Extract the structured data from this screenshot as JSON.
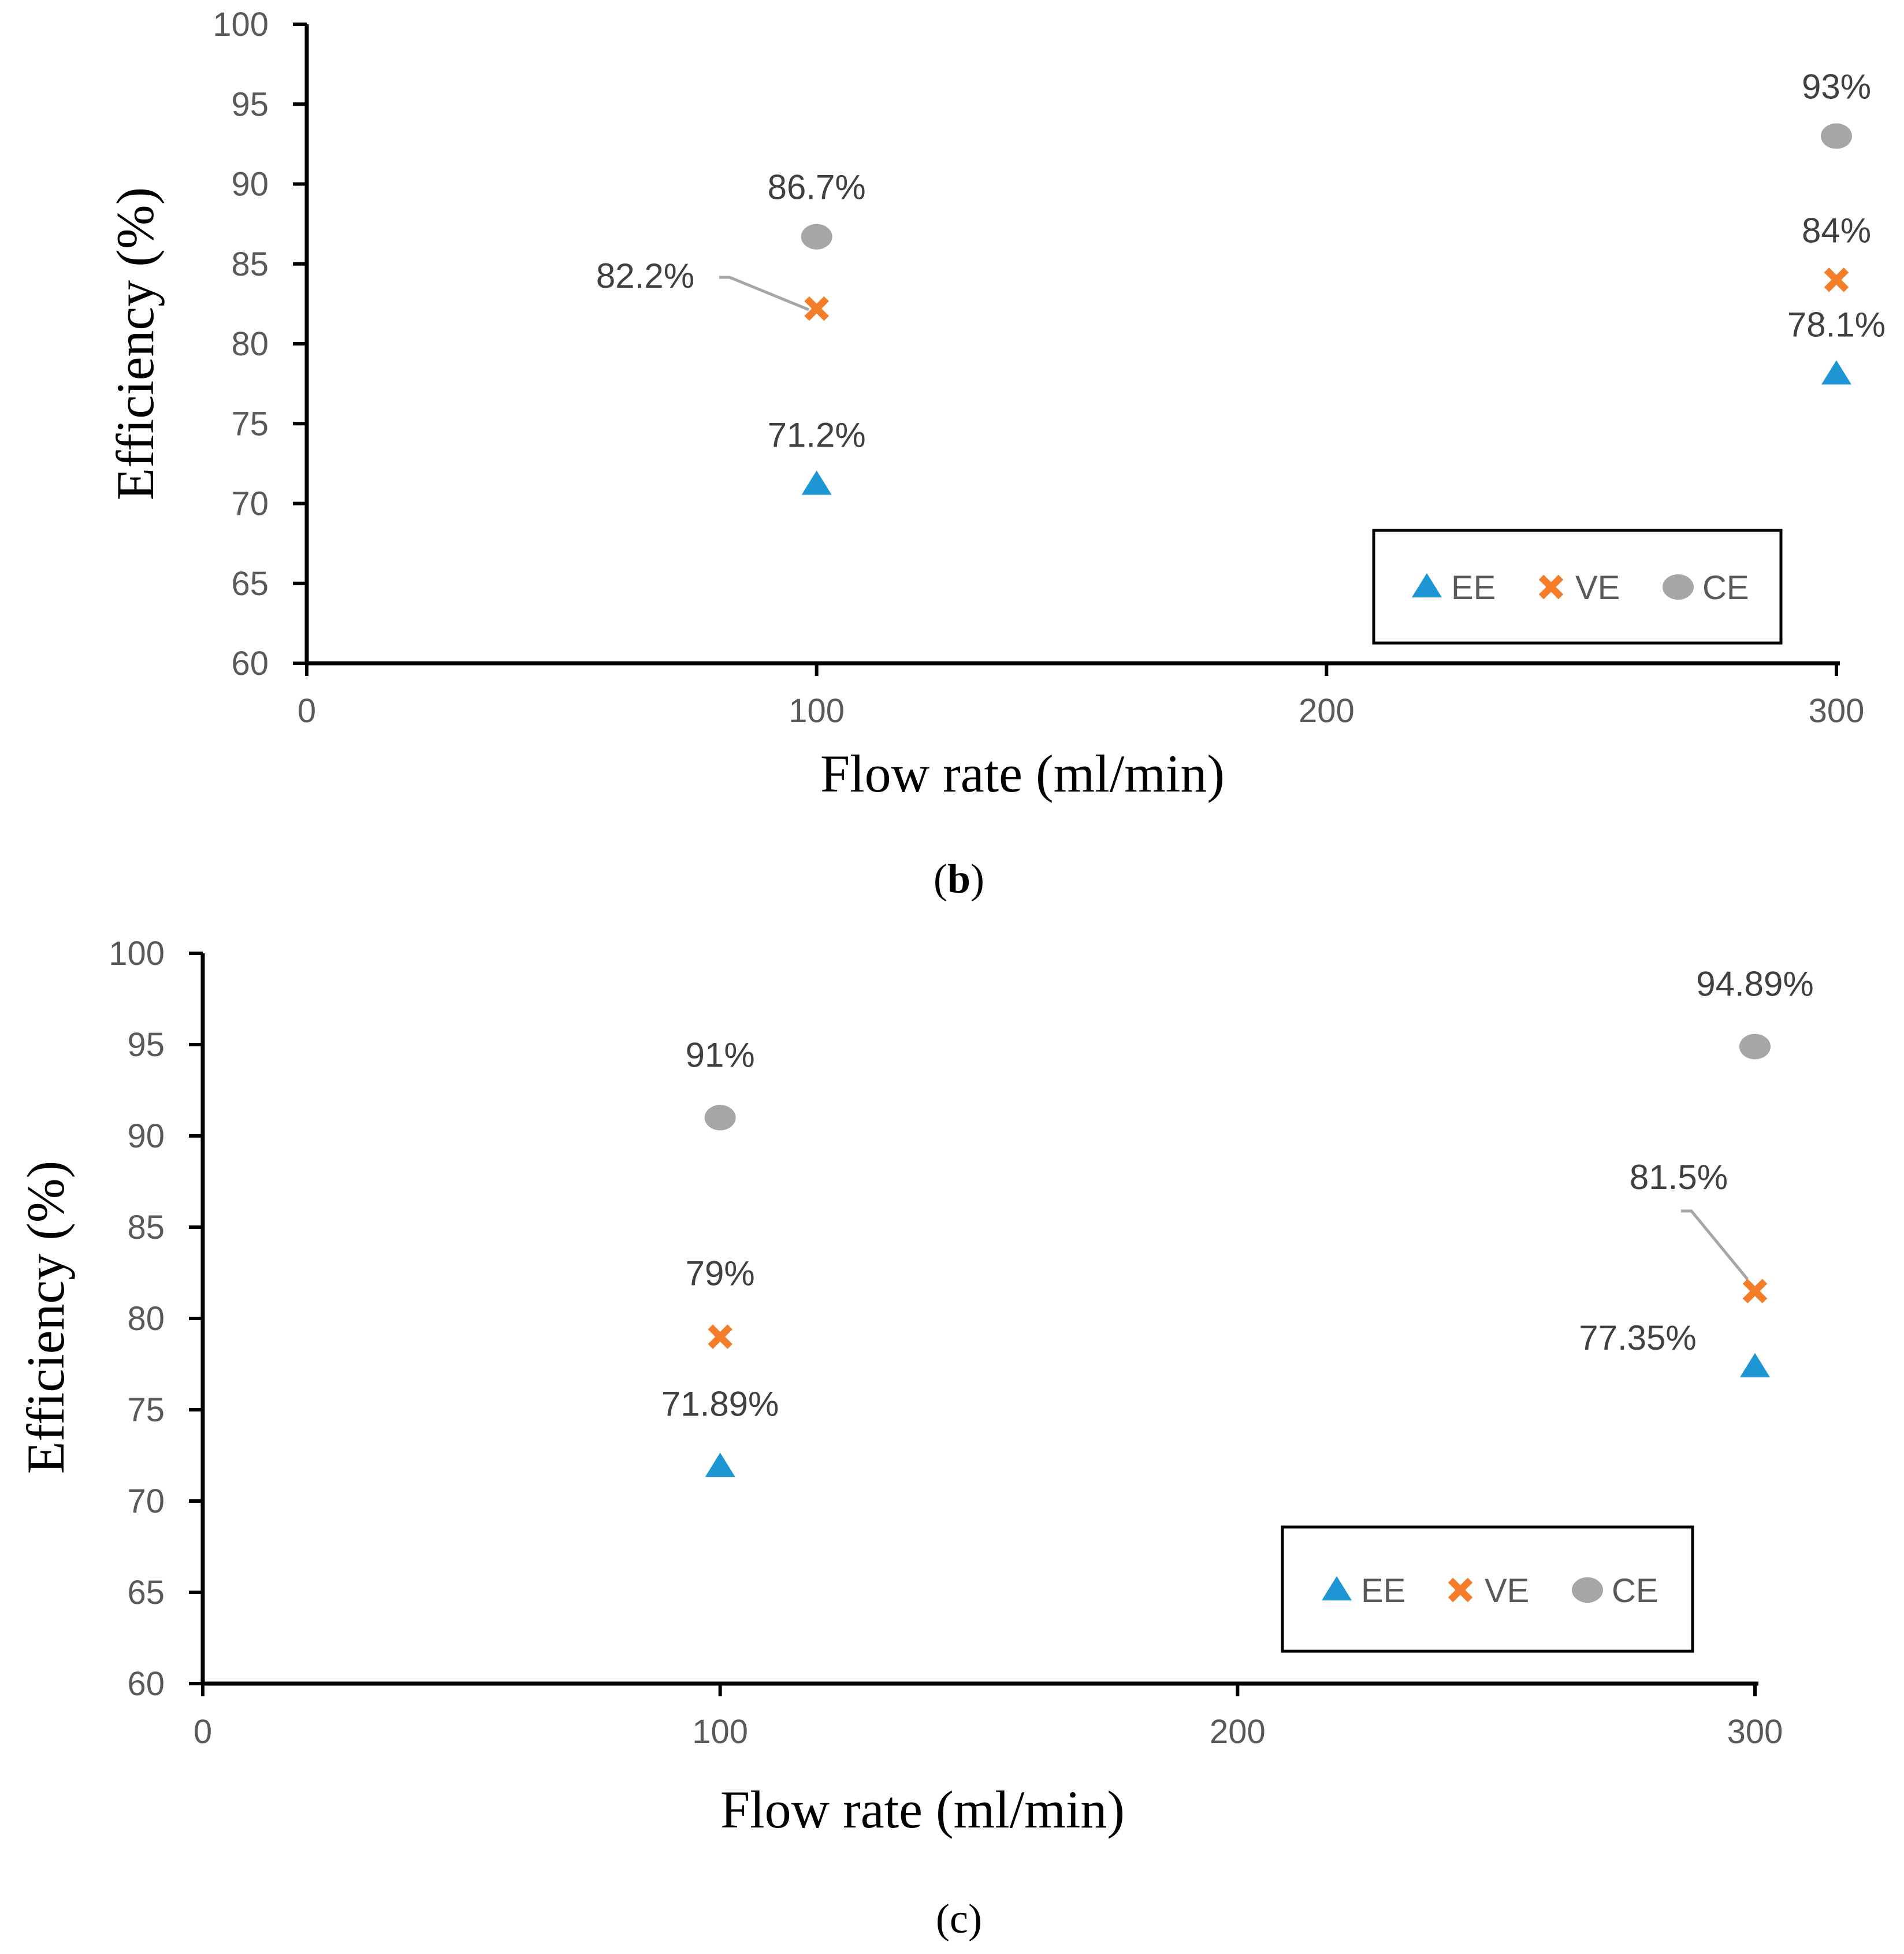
{
  "colors": {
    "EE": "#1f96d4",
    "VE": "#f47d2a",
    "CE": "#a6a6a6",
    "axis": "#000000",
    "leader": "#a6a6a6"
  },
  "chart_data": [
    {
      "type": "scatter",
      "caption_open": "(",
      "caption_bold": "b",
      "caption_close": ")",
      "xlabel": "Flow rate (ml/min)",
      "ylabel": "Efficiency (%)",
      "xlim": [
        0,
        300
      ],
      "ylim": [
        60,
        100
      ],
      "xticks": [
        "0",
        "100",
        "200",
        "300"
      ],
      "yticks": [
        "60",
        "65",
        "70",
        "75",
        "80",
        "85",
        "90",
        "95",
        "100"
      ],
      "legend_position": "bottom-right",
      "series": [
        {
          "name": "EE",
          "marker": "triangle",
          "x": [
            100,
            300
          ],
          "y": [
            71.2,
            78.1
          ],
          "labels": [
            "71.2%",
            "78.1%"
          ]
        },
        {
          "name": "VE",
          "marker": "cross",
          "x": [
            100,
            300
          ],
          "y": [
            82.2,
            84
          ],
          "labels": [
            "82.2%",
            "84%"
          ]
        },
        {
          "name": "CE",
          "marker": "circle",
          "x": [
            100,
            300
          ],
          "y": [
            86.7,
            93
          ],
          "labels": [
            "86.7%",
            "93%"
          ]
        }
      ]
    },
    {
      "type": "scatter",
      "caption_open": "(",
      "caption_bold": "c",
      "caption_close": ")",
      "xlabel": "Flow rate (ml/min)",
      "ylabel": "Efficiency (%)",
      "xlim": [
        0,
        300
      ],
      "ylim": [
        60,
        100
      ],
      "xticks": [
        "0",
        "100",
        "200",
        "300"
      ],
      "yticks": [
        "60",
        "65",
        "70",
        "75",
        "80",
        "85",
        "90",
        "95",
        "100"
      ],
      "legend_position": "bottom-right",
      "series": [
        {
          "name": "EE",
          "marker": "triangle",
          "x": [
            100,
            300
          ],
          "y": [
            71.89,
            77.35
          ],
          "labels": [
            "71.89%",
            "77.35%"
          ]
        },
        {
          "name": "VE",
          "marker": "cross",
          "x": [
            100,
            300
          ],
          "y": [
            79,
            81.5
          ],
          "labels": [
            "79%",
            "81.5%"
          ]
        },
        {
          "name": "CE",
          "marker": "circle",
          "x": [
            100,
            300
          ],
          "y": [
            91,
            94.89
          ],
          "labels": [
            "91%",
            "94.89%"
          ]
        }
      ]
    }
  ]
}
